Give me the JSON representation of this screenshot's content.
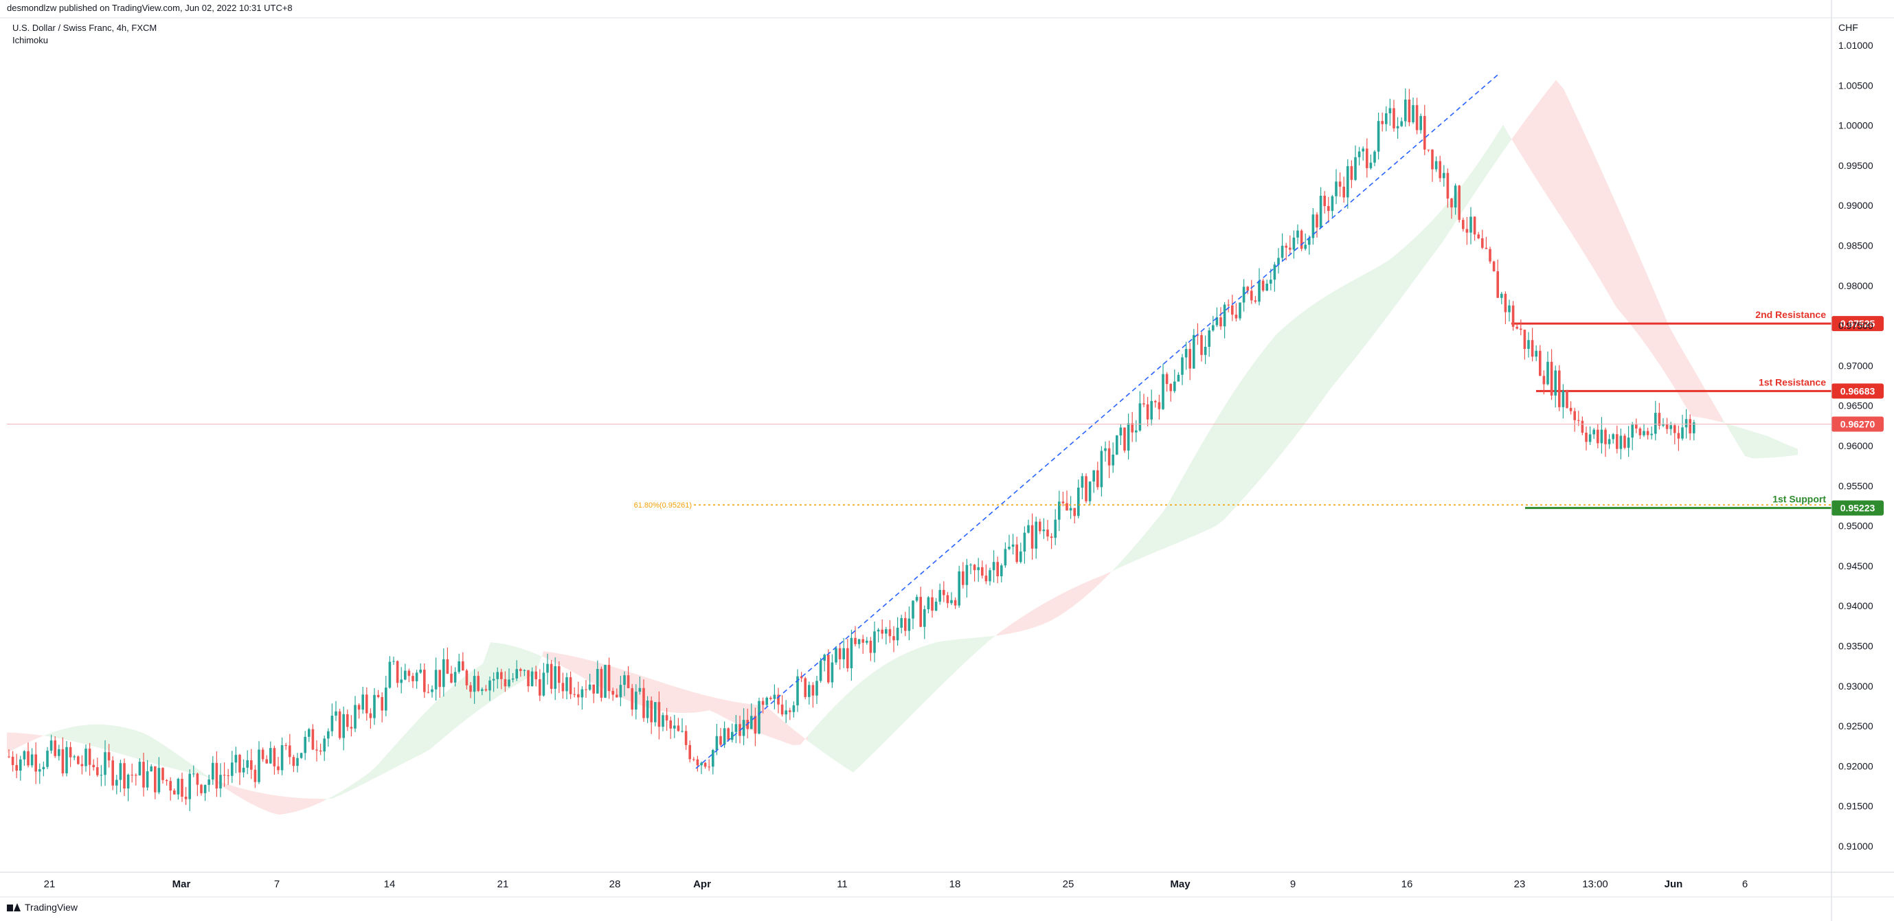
{
  "header": {
    "published": "desmondlzw published on TradingView.com, Jun 02, 2022 10:31 UTC+8",
    "symbol": "U.S. Dollar / Swiss Franc, 4h, FXCM",
    "indicator": "Ichimoku"
  },
  "footer": {
    "brand": "TradingView"
  },
  "colors": {
    "up": "#26a69a",
    "down": "#ef5350",
    "resistance": "#e5332a",
    "support": "#2e8b2e",
    "current": "#ef5350",
    "cloud_bull": "#e8f5e9",
    "cloud_bear": "#fde4e4",
    "fib": "#f2a20a",
    "trendline": "#2962ff"
  },
  "chart_data": {
    "type": "candlestick",
    "instrument": "U.S. Dollar / Swiss Franc",
    "timeframe": "4h",
    "currency_label": "CHF",
    "y_ticks": [
      "1.01000",
      "1.00500",
      "1.00000",
      "0.99500",
      "0.99000",
      "0.98500",
      "0.98000",
      "0.97500",
      "0.97000",
      "0.96500",
      "0.96000",
      "0.95500",
      "0.95000",
      "0.94500",
      "0.94000",
      "0.93500",
      "0.93000",
      "0.92500",
      "0.92000",
      "0.91500",
      "0.91000"
    ],
    "ylim": [
      0.9055,
      1.0105
    ],
    "x_ticks": [
      "21",
      "Mar",
      "7",
      "14",
      "21",
      "28",
      "Apr",
      "11",
      "18",
      "25",
      "May",
      "9",
      "16",
      "23",
      "13:00",
      "Jun",
      "6"
    ],
    "x_tick_bold": [
      "Mar",
      "Apr",
      "May",
      "Jun"
    ],
    "price_path": [
      [
        "21",
        0.9212
      ],
      [
        "Mar",
        0.9178
      ],
      [
        "7",
        0.9205
      ],
      [
        "14",
        0.929
      ],
      [
        "21",
        0.933
      ],
      [
        "28",
        0.9305
      ],
      [
        "Apr",
        0.921
      ],
      [
        "11",
        0.9335
      ],
      [
        "18",
        0.942
      ],
      [
        "25",
        0.952
      ],
      [
        "May",
        0.97
      ],
      [
        "9",
        0.985
      ],
      [
        "16",
        1.003
      ],
      [
        "23",
        0.974
      ],
      [
        "13:00",
        0.9605
      ],
      [
        "Jun",
        0.9625
      ]
    ],
    "price_levels": [
      {
        "label": "2nd Resistance",
        "value": "0.97525",
        "kind": "resistance"
      },
      {
        "label": "1st Resistance",
        "value": "0.96683",
        "kind": "resistance"
      },
      {
        "label": "1st Support",
        "value": "0.95223",
        "kind": "support"
      }
    ],
    "current_price": "0.96270",
    "fib_label": "61.80%(0.95261)",
    "fib_value": 0.95261
  }
}
